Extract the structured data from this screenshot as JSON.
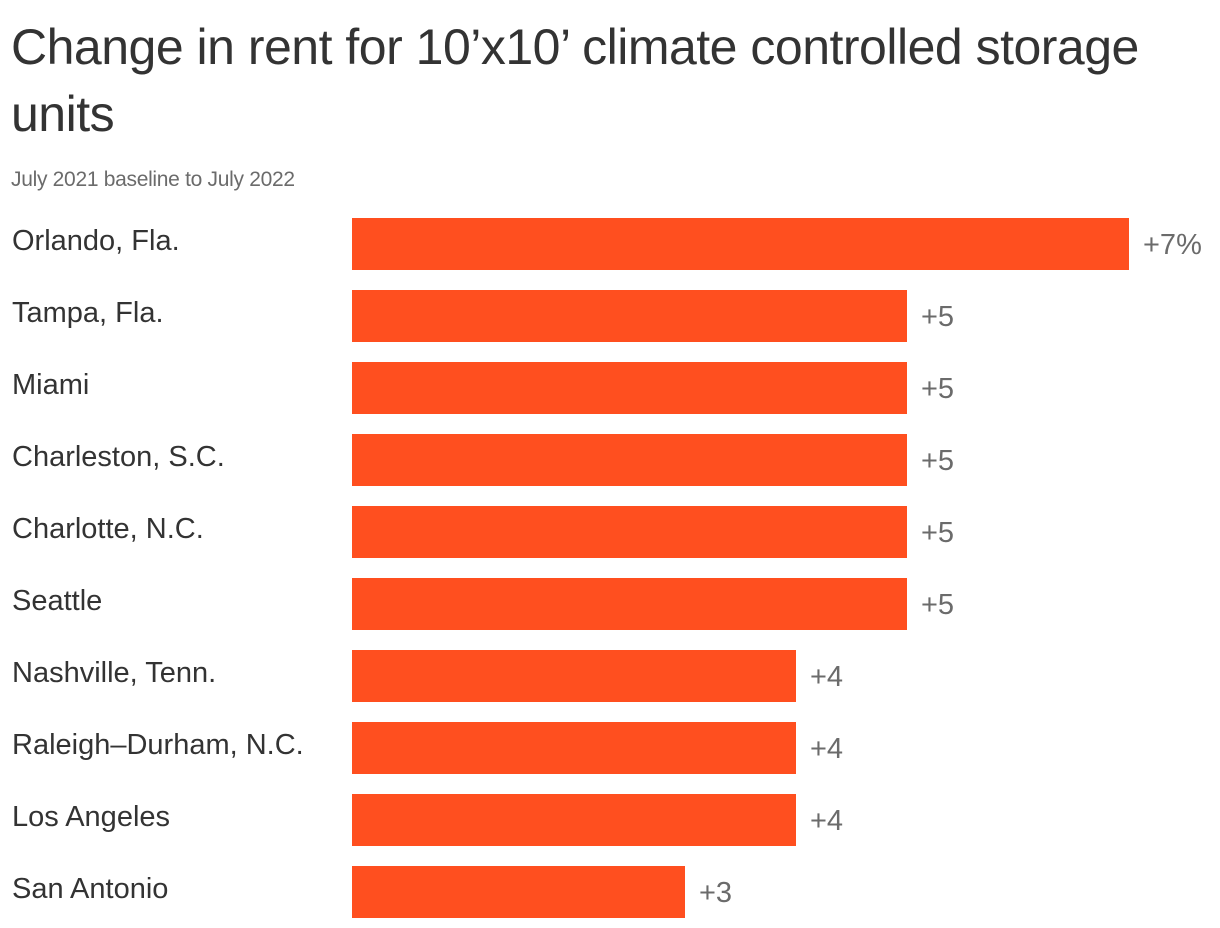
{
  "chart_data": {
    "type": "bar",
    "orientation": "horizontal",
    "title": "Change in rent for 10’x10’ climate controlled storage units",
    "subtitle": "July 2021 baseline to July 2022",
    "categories": [
      "Orlando, Fla.",
      "Tampa, Fla.",
      "Miami",
      "Charleston, S.C.",
      "Charlotte, N.C.",
      "Seattle",
      "Nashville, Tenn.",
      "Raleigh–Durham, N.C.",
      "Los Angeles",
      "San Antonio"
    ],
    "values": [
      7,
      5,
      5,
      5,
      5,
      5,
      4,
      4,
      4,
      3
    ],
    "value_labels": [
      "+7%",
      "+5",
      "+5",
      "+5",
      "+5",
      "+5",
      "+4",
      "+4",
      "+4",
      "+3"
    ],
    "xlim": [
      0,
      7
    ],
    "grid": false,
    "legend": "none",
    "bar_color": "#ff4f1f"
  }
}
